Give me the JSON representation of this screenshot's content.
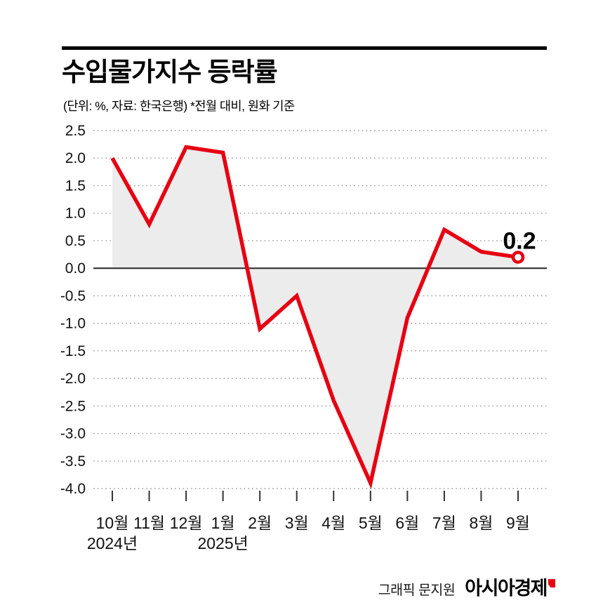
{
  "header": {
    "title": "수입물가지수 등락률",
    "subtitle": "(단위: %, 자료: 한국은행)  *전월 대비, 원화 기준"
  },
  "chart_data": {
    "type": "line",
    "title": "수입물가지수 등락률",
    "categories": [
      "10월",
      "11월",
      "12월",
      "1월",
      "2월",
      "3월",
      "4월",
      "5월",
      "6월",
      "7월",
      "8월",
      "9월"
    ],
    "values": [
      2.0,
      0.8,
      2.2,
      2.1,
      -1.1,
      -0.5,
      -2.4,
      -3.9,
      -0.9,
      0.7,
      0.3,
      0.2
    ],
    "ylim": [
      -4.0,
      2.5
    ],
    "yticks": [
      "2.5",
      "2.0",
      "1.5",
      "1.0",
      "0.5",
      "0.0",
      "-0.5",
      "-1.0",
      "-1.5",
      "-2.0",
      "-2.5",
      "-3.0",
      "-3.5",
      "-4.0"
    ],
    "year_labels": [
      {
        "index": 0,
        "label": "2024년"
      },
      {
        "index": 3,
        "label": "2025년"
      }
    ],
    "last_value_label": "0.2",
    "line_color": "#e60012",
    "area_color": "#ececec",
    "grid": "dotted horizontal gridlines, solid zero axis",
    "legend": "none"
  },
  "footer": {
    "credit": "그래픽 문지원",
    "brand": "아시아경제"
  }
}
